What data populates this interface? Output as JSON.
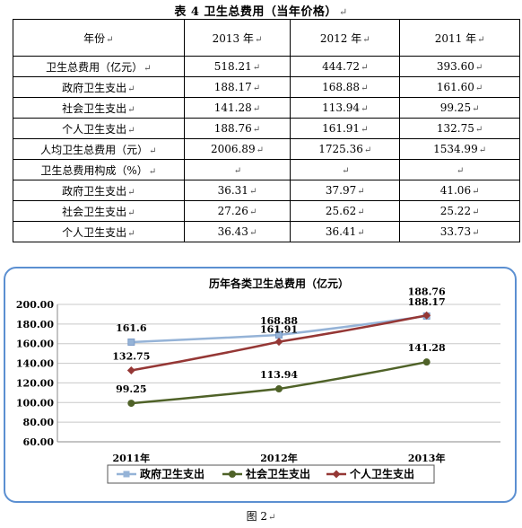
{
  "table": {
    "title": "表 4   卫生总费用（当年价格）",
    "header": {
      "label": "年份",
      "years": [
        "2013 年",
        "2012 年",
        "2011 年"
      ]
    },
    "rows": [
      {
        "label": "卫生总费用（亿元）",
        "values": [
          "518.21",
          "444.72",
          "393.60"
        ]
      },
      {
        "label": "政府卫生支出",
        "values": [
          "188.17",
          "168.88",
          "161.60"
        ]
      },
      {
        "label": "社会卫生支出",
        "values": [
          "141.28",
          "113.94",
          "99.25"
        ]
      },
      {
        "label": "个人卫生支出",
        "values": [
          "188.76",
          "161.91",
          "132.75"
        ]
      },
      {
        "label": "人均卫生总费用（元）",
        "values": [
          "2006.89",
          "1725.36",
          "1534.99"
        ]
      },
      {
        "label": "卫生总费用构成（%）",
        "values": [
          "",
          "",
          ""
        ]
      },
      {
        "label": "政府卫生支出",
        "values": [
          "36.31",
          "37.97",
          "41.06"
        ]
      },
      {
        "label": "社会卫生支出",
        "values": [
          "27.26",
          "25.62",
          "25.22"
        ]
      },
      {
        "label": "个人卫生支出",
        "values": [
          "36.43",
          "36.41",
          "33.73"
        ]
      }
    ]
  },
  "chart_data": {
    "type": "line",
    "title": "历年各类卫生总费用（亿元）",
    "categories": [
      "2011年",
      "2012年",
      "2013年"
    ],
    "ylim": [
      60,
      200
    ],
    "yticks": [
      "60.00",
      "80.00",
      "100.00",
      "120.00",
      "140.00",
      "160.00",
      "180.00",
      "200.00"
    ],
    "grid": true,
    "legend_position": "bottom",
    "series": [
      {
        "name": "政府卫生支出",
        "values": [
          161.6,
          168.88,
          188.17
        ],
        "labels": [
          "161.6",
          "168.88",
          "188.17"
        ],
        "color": "#95b3d7",
        "marker": "square"
      },
      {
        "name": "社会卫生支出",
        "values": [
          99.25,
          113.94,
          141.28
        ],
        "labels": [
          "99.25",
          "113.94",
          "141.28"
        ],
        "color": "#4f6228",
        "marker": "circle"
      },
      {
        "name": "个人卫生支出",
        "values": [
          132.75,
          161.91,
          188.76
        ],
        "labels": [
          "132.75",
          "161.91",
          "188.76"
        ],
        "color": "#953735",
        "marker": "diamond"
      }
    ]
  },
  "caption": "图 2"
}
